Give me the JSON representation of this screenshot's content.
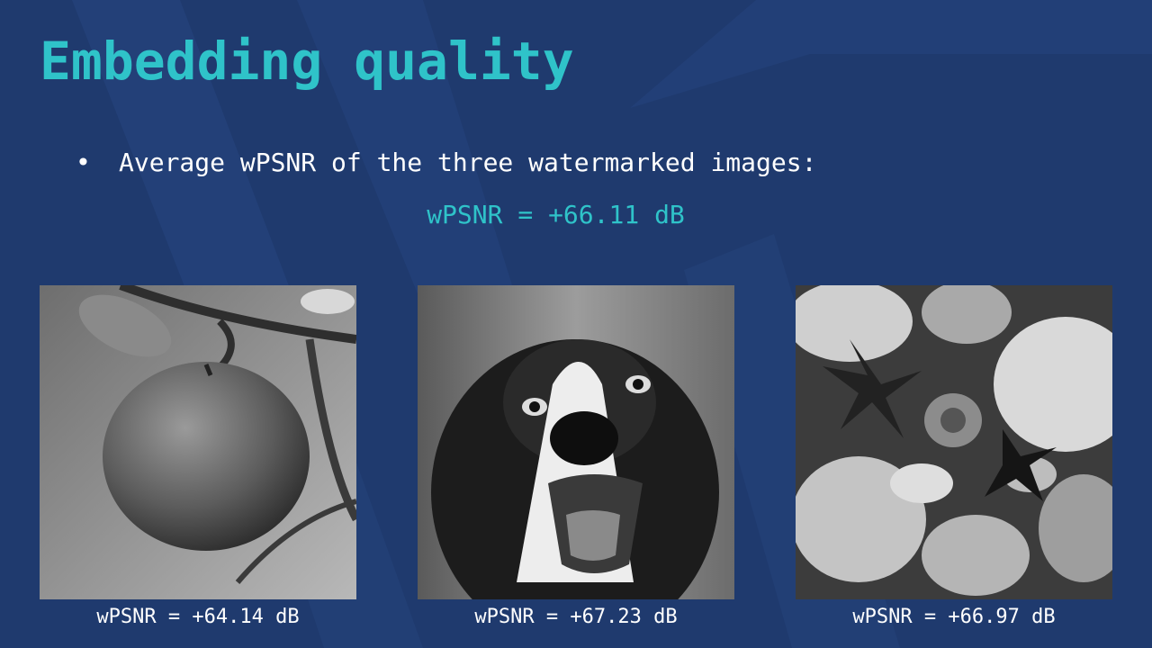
{
  "slide": {
    "title": "Embedding quality",
    "bullet": "Average wPSNR of the three watermarked images:",
    "bullet_marker": "•",
    "average": "wPSNR = +66.11 dB"
  },
  "images": [
    {
      "subject": "apple",
      "caption": "wPSNR = +64.14 dB"
    },
    {
      "subject": "dog",
      "caption": "wPSNR = +67.23 dB"
    },
    {
      "subject": "seashells",
      "caption": "wPSNR = +66.97 dB"
    }
  ],
  "colors": {
    "background": "#1f3a6e",
    "accent": "#2fc3c9",
    "text": "#ffffff"
  }
}
